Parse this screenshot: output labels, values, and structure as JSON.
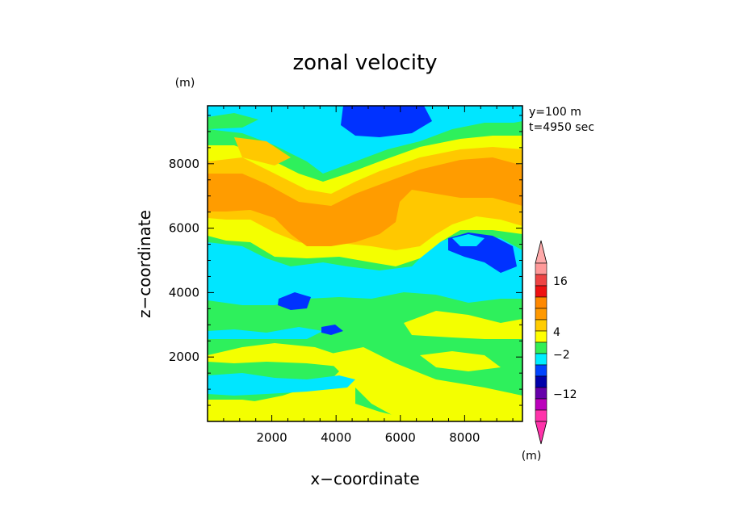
{
  "chart_data": {
    "type": "heatmap",
    "title": "zonal velocity",
    "xlabel": "x−coordinate",
    "ylabel": "z−coordinate",
    "x_unit": "(m)",
    "y_unit": "(m)",
    "annotation": [
      "y=100 m",
      "t=4950 sec"
    ],
    "xlim": [
      0,
      9800
    ],
    "ylim": [
      0,
      9800
    ],
    "x_ticks": [
      "2000",
      "4000",
      "6000",
      "8000"
    ],
    "y_ticks": [
      "2000",
      "4000",
      "6000",
      "8000"
    ],
    "colorbar": {
      "labels": [
        "16",
        "4",
        "−2",
        "−12"
      ],
      "colors": [
        "#ff9999",
        "#ee4444",
        "#ee1111",
        "#ff8800",
        "#ff9900",
        "#ffcc00",
        "#ffff00",
        "#33ee55",
        "#00eeff",
        "#0044ff",
        "#0000aa",
        "#6600aa",
        "#bb00bb",
        "#ff33aa"
      ],
      "extend": "both"
    },
    "level_colors": {
      "yellow": "#f4ff00",
      "green": "#2ef05c",
      "cyan": "#00e6ff",
      "orange": "#ff9c00",
      "light_orange": "#ffc800",
      "blue": "#0032ff"
    }
  }
}
